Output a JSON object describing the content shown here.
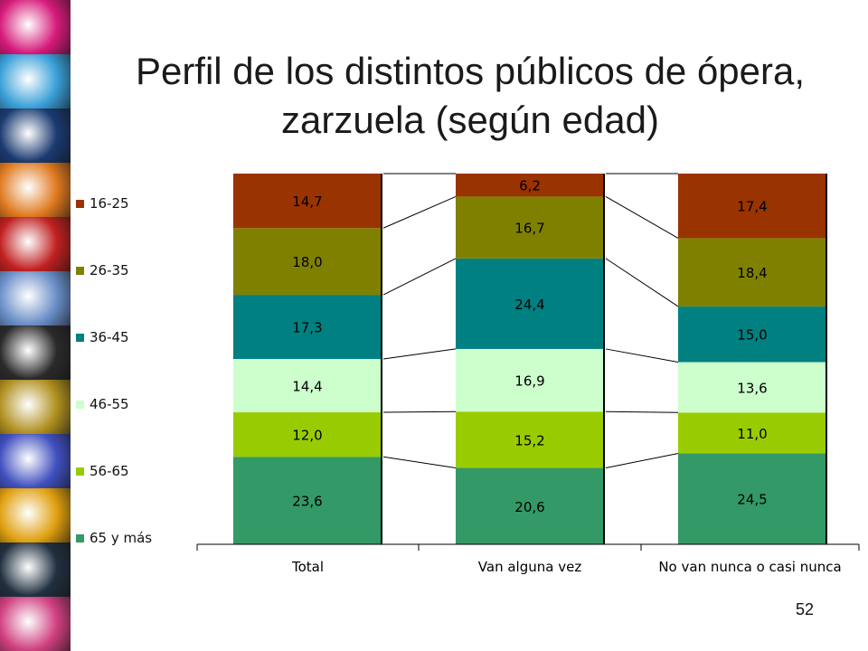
{
  "slide": {
    "title_line1": "Perfil de los distintos públicos de ópera,",
    "title_line2": "zarzuela (según edad)",
    "page_number": "52"
  },
  "photo_strip": {
    "colors": [
      "#d61a7a",
      "#3aa0d8",
      "#1a3a70",
      "#e07a20",
      "#c02020",
      "#6a8ec8",
      "#2a2a2a",
      "#b09020",
      "#4050c0",
      "#e0a010",
      "#203040",
      "#d04080"
    ]
  },
  "chart_data": {
    "type": "bar",
    "stacked": true,
    "percent": true,
    "categories": [
      "Total",
      "Van alguna vez",
      "No van nunca o casi nunca"
    ],
    "series": [
      {
        "name": "65 y más",
        "color": "#339966",
        "values": [
          23.6,
          20.6,
          24.5
        ],
        "labels": [
          "23,6",
          "20,6",
          "24,5"
        ]
      },
      {
        "name": "56-65",
        "color": "#99cc00",
        "values": [
          12.0,
          15.2,
          11.0
        ],
        "labels": [
          "12,0",
          "15,2",
          "11,0"
        ]
      },
      {
        "name": "46-55",
        "color": "#ccffcc",
        "values": [
          14.4,
          16.9,
          13.6
        ],
        "labels": [
          "14,4",
          "16,9",
          "13,6"
        ]
      },
      {
        "name": "36-45",
        "color": "#008080",
        "values": [
          17.3,
          24.4,
          15.0
        ],
        "labels": [
          "17,3",
          "24,4",
          "15,0"
        ]
      },
      {
        "name": "26-35",
        "color": "#808000",
        "values": [
          18.0,
          16.7,
          18.4
        ],
        "labels": [
          "18,0",
          "16,7",
          "18,4"
        ]
      },
      {
        "name": "16-25",
        "color": "#993300",
        "values": [
          14.7,
          6.2,
          17.4
        ],
        "labels": [
          "14,7",
          "6,2",
          "17,4"
        ]
      }
    ],
    "legend_position": "left",
    "series_lines": true
  }
}
